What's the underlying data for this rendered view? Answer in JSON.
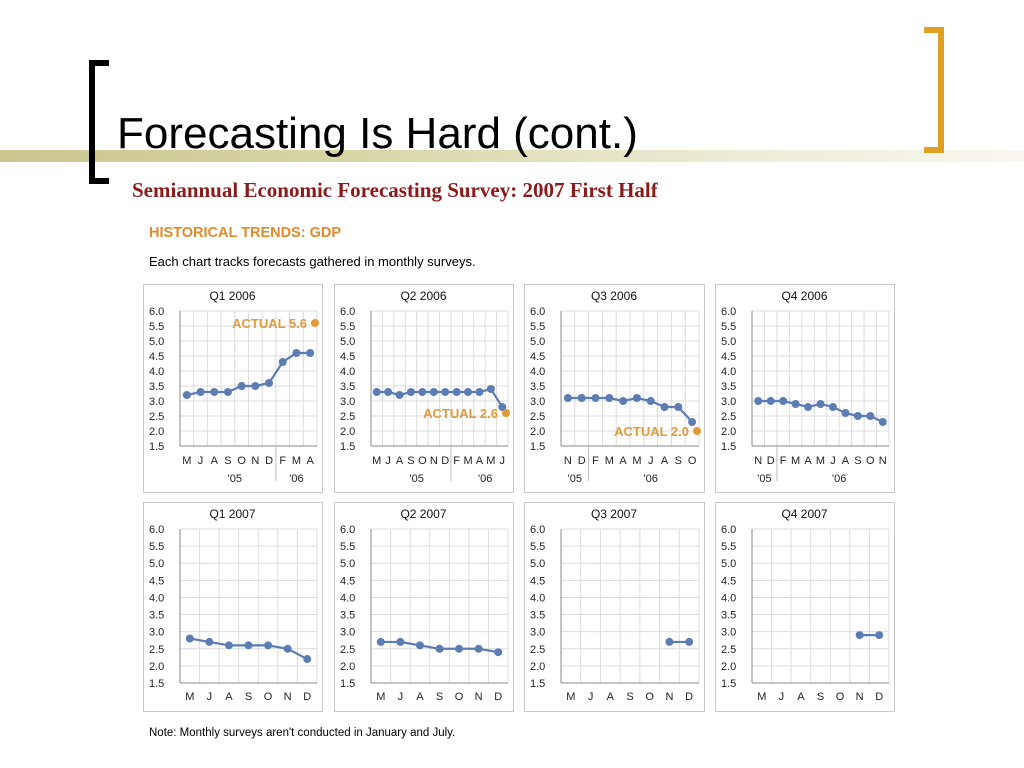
{
  "slide": {
    "title": "Forecasting Is Hard (cont.)",
    "survey_title": "Semiannual Economic Forecasting Survey: 2007 First Half",
    "section_heading": "HISTORICAL TRENDS: GDP",
    "subtitle": "Each chart tracks forecasts gathered in monthly surveys.",
    "note": "Note: Monthly surveys aren't conducted in January and July.",
    "colors": {
      "accent_bracket": "#e0a020",
      "survey_title": "#8b1a1a",
      "heading": "#e08a2a",
      "series": "#5b7db4",
      "actual": "#e09a3a"
    }
  },
  "chart_data": [
    {
      "type": "line",
      "title": "Q1 2006",
      "categories": [
        "M",
        "J",
        "A",
        "S",
        "O",
        "N",
        "D",
        "F",
        "M",
        "A"
      ],
      "year_labels": [
        {
          "label": "'05",
          "at": 3.5
        },
        {
          "label": "'06",
          "at": 8
        }
      ],
      "year_divider_after": 6,
      "series": [
        {
          "values": [
            3.2,
            3.3,
            3.3,
            3.3,
            3.5,
            3.5,
            3.6,
            4.3,
            4.6,
            4.6
          ]
        }
      ],
      "actual": {
        "label": "ACTUAL",
        "value": 5.6
      },
      "ylim": [
        1.5,
        6.0
      ],
      "yticks": [
        "6.0",
        "5.5",
        "5.0",
        "4.5",
        "4.0",
        "3.5",
        "3.0",
        "2.5",
        "2.0",
        "1.5"
      ],
      "grid": true
    },
    {
      "type": "line",
      "title": "Q2 2006",
      "categories": [
        "M",
        "J",
        "A",
        "S",
        "O",
        "N",
        "D",
        "F",
        "M",
        "A",
        "M",
        "J"
      ],
      "year_labels": [
        {
          "label": "'05",
          "at": 3.5
        },
        {
          "label": "'06",
          "at": 9.5
        }
      ],
      "year_divider_after": 6,
      "series": [
        {
          "values": [
            3.3,
            3.3,
            3.2,
            3.3,
            3.3,
            3.3,
            3.3,
            3.3,
            3.3,
            3.3,
            3.4,
            2.8
          ]
        }
      ],
      "actual": {
        "label": "ACTUAL",
        "value": 2.6
      },
      "ylim": [
        1.5,
        6.0
      ],
      "yticks": [
        "6.0",
        "5.5",
        "5.0",
        "4.5",
        "4.0",
        "3.5",
        "3.0",
        "2.5",
        "2.0",
        "1.5"
      ],
      "grid": true
    },
    {
      "type": "line",
      "title": "Q3 2006",
      "categories": [
        "N",
        "D",
        "F",
        "M",
        "A",
        "M",
        "J",
        "A",
        "S",
        "O"
      ],
      "year_labels": [
        {
          "label": "'05",
          "at": 0.5
        },
        {
          "label": "'06",
          "at": 6
        }
      ],
      "year_divider_after": 1,
      "series": [
        {
          "values": [
            3.1,
            3.1,
            3.1,
            3.1,
            3.0,
            3.1,
            3.0,
            2.8,
            2.8,
            2.3
          ]
        }
      ],
      "actual": {
        "label": "ACTUAL",
        "value": 2.0
      },
      "ylim": [
        1.5,
        6.0
      ],
      "yticks": [
        "6.0",
        "5.5",
        "5.0",
        "4.5",
        "4.0",
        "3.5",
        "3.0",
        "2.5",
        "2.0",
        "1.5"
      ],
      "grid": true
    },
    {
      "type": "line",
      "title": "Q4 2006",
      "categories": [
        "N",
        "D",
        "F",
        "M",
        "A",
        "M",
        "J",
        "A",
        "S",
        "O",
        "N"
      ],
      "year_labels": [
        {
          "label": "'05",
          "at": 0.5
        },
        {
          "label": "'06",
          "at": 6.5
        }
      ],
      "year_divider_after": 1,
      "series": [
        {
          "values": [
            3.0,
            3.0,
            3.0,
            2.9,
            2.8,
            2.9,
            2.8,
            2.6,
            2.5,
            2.5,
            2.3
          ]
        }
      ],
      "actual": null,
      "ylim": [
        1.5,
        6.0
      ],
      "yticks": [
        "6.0",
        "5.5",
        "5.0",
        "4.5",
        "4.0",
        "3.5",
        "3.0",
        "2.5",
        "2.0",
        "1.5"
      ],
      "grid": true
    },
    {
      "type": "line",
      "title": "Q1 2007",
      "categories": [
        "M",
        "J",
        "A",
        "S",
        "O",
        "N",
        "D"
      ],
      "year_labels": [],
      "year_divider_after": null,
      "series": [
        {
          "values": [
            2.8,
            2.7,
            2.6,
            2.6,
            2.6,
            2.5,
            2.2
          ]
        }
      ],
      "actual": null,
      "ylim": [
        1.5,
        6.0
      ],
      "yticks": [
        "6.0",
        "5.5",
        "5.0",
        "4.5",
        "4.0",
        "3.5",
        "3.0",
        "2.5",
        "2.0",
        "1.5"
      ],
      "grid": true
    },
    {
      "type": "line",
      "title": "Q2 2007",
      "categories": [
        "M",
        "J",
        "A",
        "S",
        "O",
        "N",
        "D"
      ],
      "year_labels": [],
      "year_divider_after": null,
      "series": [
        {
          "values": [
            2.7,
            2.7,
            2.6,
            2.5,
            2.5,
            2.5,
            2.4
          ]
        }
      ],
      "actual": null,
      "ylim": [
        1.5,
        6.0
      ],
      "yticks": [
        "6.0",
        "5.5",
        "5.0",
        "4.5",
        "4.0",
        "3.5",
        "3.0",
        "2.5",
        "2.0",
        "1.5"
      ],
      "grid": true
    },
    {
      "type": "line",
      "title": "Q3 2007",
      "categories": [
        "M",
        "J",
        "A",
        "S",
        "O",
        "N",
        "D"
      ],
      "year_labels": [],
      "year_divider_after": null,
      "series": [
        {
          "values": [
            null,
            null,
            null,
            null,
            null,
            2.7,
            2.7
          ]
        }
      ],
      "actual": null,
      "ylim": [
        1.5,
        6.0
      ],
      "yticks": [
        "6.0",
        "5.5",
        "5.0",
        "4.5",
        "4.0",
        "3.5",
        "3.0",
        "2.5",
        "2.0",
        "1.5"
      ],
      "grid": true
    },
    {
      "type": "line",
      "title": "Q4 2007",
      "categories": [
        "M",
        "J",
        "A",
        "S",
        "O",
        "N",
        "D"
      ],
      "year_labels": [],
      "year_divider_after": null,
      "series": [
        {
          "values": [
            null,
            null,
            null,
            null,
            null,
            2.9,
            2.9
          ]
        }
      ],
      "actual": null,
      "ylim": [
        1.5,
        6.0
      ],
      "yticks": [
        "6.0",
        "5.5",
        "5.0",
        "4.5",
        "4.0",
        "3.5",
        "3.0",
        "2.5",
        "2.0",
        "1.5"
      ],
      "grid": true
    }
  ]
}
